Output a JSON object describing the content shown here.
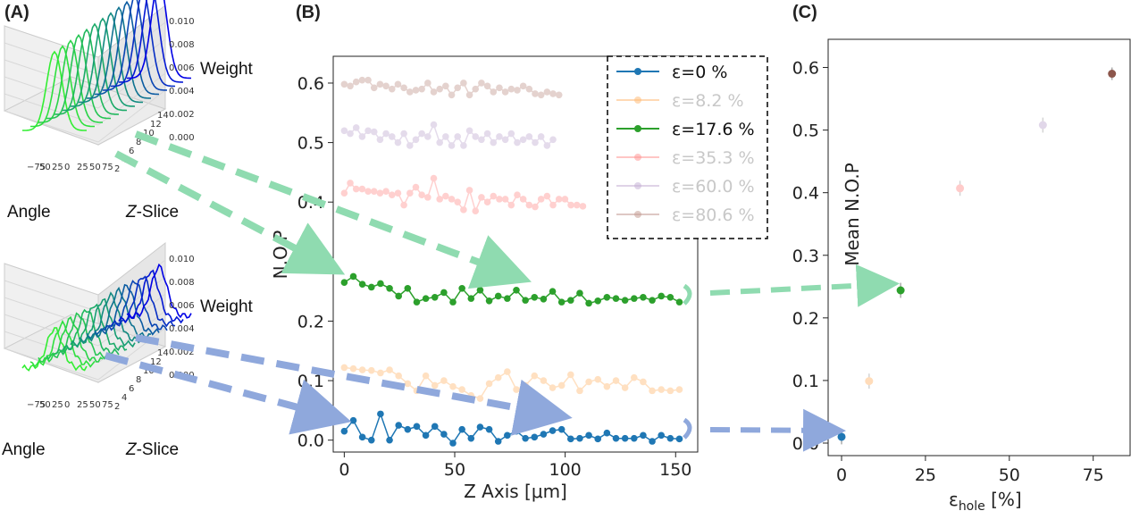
{
  "panels": {
    "a": "(A)",
    "b": "(B)",
    "c": "(C)"
  },
  "panel_a": {
    "top": {
      "zlabel": "Weight",
      "xlabel": "Angle",
      "ylabel_italic": "Z",
      "ylabel_rest": "-Slice",
      "zticks": [
        "0.010",
        "0.008",
        "0.006",
        "0.004",
        "0.002",
        "0.000"
      ],
      "xticks": [
        "−75",
        "50",
        "25",
        "0",
        "25",
        "50",
        "75"
      ],
      "yticks": [
        "2",
        "4",
        "6",
        "8",
        "10",
        "12",
        "14"
      ]
    },
    "bottom": {
      "zlabel": "Weight",
      "xlabel": "Angle",
      "ylabel_italic": "Z",
      "ylabel_rest": "-Slice",
      "zticks": [
        "0.010",
        "0.008",
        "0.006",
        "0.004",
        "0.002",
        "0.000"
      ],
      "xticks": [
        "−75",
        "50",
        "25",
        "0",
        "25",
        "50",
        "75"
      ],
      "yticks": [
        "2",
        "4",
        "6",
        "8",
        "10",
        "12",
        "14"
      ]
    }
  },
  "chart_data": [
    {
      "type": "line",
      "panel": "B",
      "xlabel": "Z Axis [μm]",
      "ylabel": "N.O.P",
      "xlim": [
        -5,
        160
      ],
      "ylim": [
        -0.02,
        0.645
      ],
      "xticks": [
        0,
        50,
        100,
        150
      ],
      "yticks": [
        0.0,
        0.1,
        0.2,
        0.3,
        0.4,
        0.5,
        0.6
      ],
      "legend_position": "top-right",
      "series": [
        {
          "name": "ε=0 %",
          "label": "ε=0 %",
          "color": "#1f77b4",
          "faded": false,
          "x": [
            0,
            4.1,
            8.2,
            12.3,
            16.4,
            20.5,
            24.6,
            28.7,
            32.8,
            36.9,
            41,
            45.1,
            49.2,
            53.3,
            57.4,
            61.5,
            65.6,
            69.7,
            73.8,
            77.9,
            82,
            86.1,
            90.2,
            94.3,
            98.4,
            102.5,
            106.6,
            110.7,
            114.8,
            118.9,
            123,
            127.1,
            131.2,
            135.3,
            139.4,
            143.5,
            147.6,
            151.7
          ],
          "values": [
            0.015,
            0.033,
            0.005,
            0,
            0.044,
            0,
            0.025,
            0.018,
            0.023,
            0.008,
            0.023,
            0.01,
            -0.005,
            0.018,
            0.003,
            0.022,
            0.018,
            -0.002,
            0.008,
            0.015,
            0.003,
            0.005,
            0.01,
            0.016,
            0.018,
            0.002,
            0.003,
            0.008,
            0.002,
            0.012,
            0.003,
            0.003,
            0.003,
            0.008,
            -0.002,
            0.008,
            0.003,
            0.002
          ]
        },
        {
          "name": "ε=8.2 %",
          "label": "ε=8.2 %",
          "color": "#ffbb78",
          "faded": true,
          "x": [
            0,
            4.1,
            8.2,
            12.3,
            16.4,
            20.5,
            24.6,
            28.7,
            32.8,
            36.9,
            41,
            45.1,
            49.2,
            53.3,
            57.4,
            61.5,
            65.6,
            69.7,
            73.8,
            77.9,
            82,
            86.1,
            90.2,
            94.3,
            98.4,
            102.5,
            106.6,
            110.7,
            114.8,
            118.9,
            123,
            127.1,
            131.2,
            135.3,
            139.4,
            143.5,
            147.6,
            151.7
          ],
          "values": [
            0.122,
            0.12,
            0.118,
            0.117,
            0.113,
            0.118,
            0.108,
            0.095,
            0.083,
            0.108,
            0.092,
            0.1,
            0.09,
            0.085,
            0.075,
            0.07,
            0.095,
            0.105,
            0.115,
            0.085,
            0.092,
            0.108,
            0.1,
            0.088,
            0.092,
            0.11,
            0.083,
            0.098,
            0.102,
            0.09,
            0.1,
            0.088,
            0.105,
            0.098,
            0.083,
            0.085,
            0.083,
            0.085
          ]
        },
        {
          "name": "ε=17.6 %",
          "label": "ε=17.6 %",
          "color": "#2ca02c",
          "faded": false,
          "x": [
            0,
            4.1,
            8.2,
            12.3,
            16.4,
            20.5,
            24.6,
            28.7,
            32.8,
            36.9,
            41,
            45.1,
            49.2,
            53.3,
            57.4,
            61.5,
            65.6,
            69.7,
            73.8,
            77.9,
            82,
            86.1,
            90.2,
            94.3,
            98.4,
            102.5,
            106.6,
            110.7,
            114.8,
            118.9,
            123,
            127.1,
            131.2,
            135.3,
            139.4,
            143.5,
            147.6,
            151.7
          ],
          "values": [
            0.265,
            0.275,
            0.262,
            0.257,
            0.263,
            0.255,
            0.242,
            0.255,
            0.232,
            0.238,
            0.24,
            0.248,
            0.232,
            0.255,
            0.238,
            0.252,
            0.234,
            0.242,
            0.238,
            0.252,
            0.235,
            0.24,
            0.237,
            0.25,
            0.232,
            0.235,
            0.247,
            0.23,
            0.234,
            0.24,
            0.238,
            0.235,
            0.238,
            0.24,
            0.235,
            0.242,
            0.24,
            0.232
          ]
        },
        {
          "name": "ε=35.3 %",
          "label": "ε=35.3 %",
          "color": "#ff9896",
          "faded": true,
          "x": [
            0,
            2.7,
            5.4,
            8.1,
            10.8,
            13.5,
            16.2,
            18.9,
            21.6,
            24.3,
            27,
            29.7,
            32.4,
            35.1,
            37.8,
            40.5,
            43.2,
            45.9,
            48.6,
            51.3,
            54,
            56.7,
            59.4,
            62.1,
            64.8,
            67.5,
            70.2,
            72.9,
            75.6,
            78.3,
            81,
            83.7,
            86.4,
            89.1,
            91.8,
            94.5,
            97.2,
            99.9,
            102.6,
            105.3,
            108
          ],
          "values": [
            0.415,
            0.432,
            0.422,
            0.422,
            0.418,
            0.418,
            0.415,
            0.418,
            0.412,
            0.415,
            0.395,
            0.415,
            0.425,
            0.412,
            0.408,
            0.44,
            0.405,
            0.41,
            0.405,
            0.4,
            0.387,
            0.42,
            0.385,
            0.408,
            0.4,
            0.41,
            0.405,
            0.405,
            0.395,
            0.412,
            0.405,
            0.395,
            0.392,
            0.405,
            0.41,
            0.395,
            0.405,
            0.405,
            0.395,
            0.395,
            0.393
          ]
        },
        {
          "name": "ε=60.0 %",
          "label": "ε=60.0 %",
          "color": "#c5b0d5",
          "faded": true,
          "x": [
            0,
            2.7,
            5.4,
            8.1,
            10.8,
            13.5,
            16.2,
            18.9,
            21.6,
            24.3,
            27,
            29.7,
            32.4,
            35.1,
            37.8,
            40.5,
            43.2,
            45.9,
            48.6,
            51.3,
            54,
            56.7,
            59.4,
            62.1,
            64.8,
            67.5,
            70.2,
            72.9,
            75.6,
            78.3,
            81,
            83.7,
            86.4,
            89.1,
            91.8,
            94.5
          ],
          "values": [
            0.52,
            0.515,
            0.525,
            0.51,
            0.52,
            0.518,
            0.505,
            0.515,
            0.51,
            0.5,
            0.515,
            0.495,
            0.505,
            0.515,
            0.51,
            0.53,
            0.5,
            0.51,
            0.495,
            0.51,
            0.495,
            0.52,
            0.51,
            0.505,
            0.515,
            0.5,
            0.51,
            0.505,
            0.515,
            0.5,
            0.505,
            0.51,
            0.5,
            0.51,
            0.495,
            0.505
          ]
        },
        {
          "name": "ε=80.6 %",
          "label": "ε=80.6 %",
          "color": "#c49c94",
          "faded": true,
          "x": [
            0,
            2.7,
            5.4,
            8.1,
            10.8,
            13.5,
            16.2,
            18.9,
            21.6,
            24.3,
            27,
            29.7,
            32.4,
            35.1,
            37.8,
            40.5,
            43.2,
            45.9,
            48.6,
            51.3,
            54,
            56.7,
            59.4,
            62.1,
            64.8,
            67.5,
            70.2,
            72.9,
            75.6,
            78.3,
            81,
            83.7,
            86.4,
            89.1,
            91.8,
            94.5,
            97.2
          ],
          "values": [
            0.598,
            0.595,
            0.602,
            0.605,
            0.605,
            0.592,
            0.598,
            0.595,
            0.59,
            0.598,
            0.592,
            0.585,
            0.588,
            0.59,
            0.6,
            0.585,
            0.59,
            0.595,
            0.58,
            0.592,
            0.6,
            0.58,
            0.59,
            0.6,
            0.595,
            0.585,
            0.592,
            0.585,
            0.59,
            0.588,
            0.595,
            0.59,
            0.582,
            0.58,
            0.585,
            0.582,
            0.58
          ]
        }
      ]
    },
    {
      "type": "scatter",
      "panel": "C",
      "xlabel_main": "ε",
      "xlabel_sub": "hole",
      "xlabel_tail": " [%]",
      "ylabel": "Mean N.O.P",
      "xlim": [
        -4,
        86
      ],
      "ylim": [
        -0.02,
        0.645
      ],
      "xticks": [
        0,
        25,
        50,
        75
      ],
      "yticks": [
        0.0,
        0.1,
        0.2,
        0.3,
        0.4,
        0.5,
        0.6
      ],
      "points": [
        {
          "x": 0,
          "y": 0.01,
          "err": 0.012,
          "color": "#1f77b4",
          "faded": false
        },
        {
          "x": 8.2,
          "y": 0.099,
          "err": 0.012,
          "color": "#ffbb78",
          "faded": true
        },
        {
          "x": 17.6,
          "y": 0.244,
          "err": 0.012,
          "color": "#2ca02c",
          "faded": false
        },
        {
          "x": 35.3,
          "y": 0.407,
          "err": 0.012,
          "color": "#ff9896",
          "faded": true
        },
        {
          "x": 60.0,
          "y": 0.508,
          "err": 0.012,
          "color": "#c5b0d5",
          "faded": true
        },
        {
          "x": 80.6,
          "y": 0.59,
          "err": 0.01,
          "color": "#8c564b",
          "faded": false
        }
      ]
    }
  ]
}
